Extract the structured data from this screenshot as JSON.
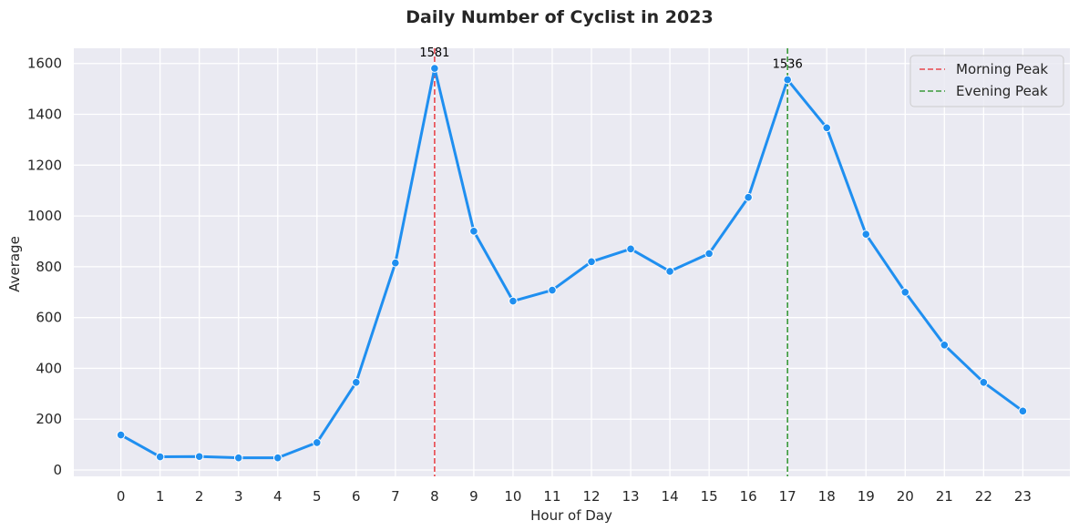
{
  "chart_data": {
    "type": "line",
    "title": "Daily Number of Cyclist in 2023",
    "xlabel": "Hour of Day",
    "ylabel": "Average",
    "x": [
      0,
      1,
      2,
      3,
      4,
      5,
      6,
      7,
      8,
      9,
      10,
      11,
      12,
      13,
      14,
      15,
      16,
      17,
      18,
      19,
      20,
      21,
      22,
      23
    ],
    "x_tick_labels": [
      "0",
      "1",
      "2",
      "3",
      "4",
      "5",
      "6",
      "7",
      "8",
      "9",
      "10",
      "11",
      "12",
      "13",
      "14",
      "15",
      "16",
      "17",
      "18",
      "19",
      "20",
      "21",
      "22",
      "23"
    ],
    "y_ticks": [
      0,
      200,
      400,
      600,
      800,
      1000,
      1200,
      1400,
      1600
    ],
    "y_tick_labels": [
      "0",
      "200",
      "400",
      "600",
      "800",
      "1000",
      "1200",
      "1400",
      "1600"
    ],
    "xlim": [
      -1.2,
      24.2
    ],
    "ylim": [
      -25,
      1660
    ],
    "grid": true,
    "series": [
      {
        "values": [
          138,
          52,
          53,
          48,
          48,
          108,
          345,
          815,
          1581,
          940,
          665,
          708,
          820,
          870,
          782,
          852,
          1073,
          1536,
          1347,
          928,
          700,
          492,
          345,
          232
        ],
        "color": "#1f8ff0"
      }
    ],
    "reference_lines": [
      {
        "x": 8,
        "name": "Morning Peak",
        "color": "#e8474d",
        "style": "dashed"
      },
      {
        "x": 17,
        "name": "Evening Peak",
        "color": "#3a9a3a",
        "style": "dashed"
      }
    ],
    "annotations": [
      {
        "x": 8,
        "y": 1581,
        "text": "1581"
      },
      {
        "x": 17,
        "y": 1536,
        "text": "1536"
      }
    ],
    "legend_position": "top-right",
    "background_color": "#eaeaf2",
    "grid_color": "#ffffff"
  }
}
